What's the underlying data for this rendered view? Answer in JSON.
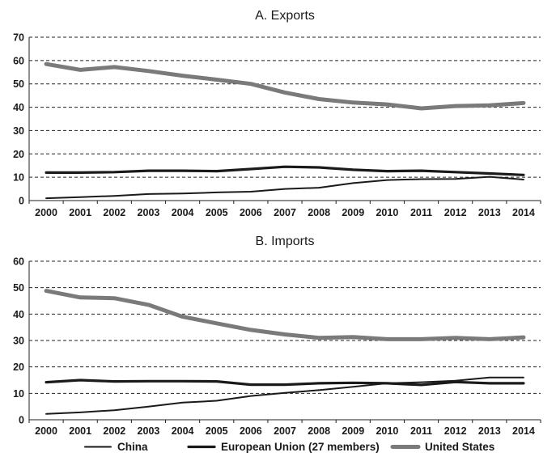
{
  "chart_data": [
    {
      "type": "line",
      "title": "A. Exports",
      "xlabel": "",
      "ylabel": "",
      "x": [
        "2000",
        "2001",
        "2002",
        "2003",
        "2004",
        "2005",
        "2006",
        "2007",
        "2008",
        "2009",
        "2010",
        "2011",
        "2012",
        "2013",
        "2014"
      ],
      "ylim": [
        0,
        70
      ],
      "yticks": [
        0,
        10,
        20,
        30,
        40,
        50,
        60,
        70
      ],
      "grid": true,
      "series": [
        {
          "name": "China",
          "color": "#1a1a1a",
          "values": [
            1.0,
            1.5,
            2.0,
            2.8,
            3.0,
            3.5,
            3.8,
            5.0,
            5.5,
            7.5,
            8.8,
            9.2,
            9.3,
            10.2,
            9.0
          ]
        },
        {
          "name": "European Union (27 members)",
          "color": "#1a1a1a",
          "values": [
            12.0,
            12.0,
            12.2,
            12.8,
            12.8,
            12.6,
            13.5,
            14.5,
            14.2,
            13.2,
            12.6,
            12.8,
            12.2,
            11.6,
            11.0
          ]
        },
        {
          "name": "United States",
          "color": "#7a7a7a",
          "values": [
            58.5,
            56.0,
            57.2,
            55.5,
            53.5,
            51.8,
            50.0,
            46.3,
            43.5,
            42.0,
            41.2,
            39.5,
            40.5,
            40.8,
            41.8
          ]
        }
      ]
    },
    {
      "type": "line",
      "title": "B. Imports",
      "xlabel": "",
      "ylabel": "",
      "x": [
        "2000",
        "2001",
        "2002",
        "2003",
        "2004",
        "2005",
        "2006",
        "2007",
        "2008",
        "2009",
        "2010",
        "2011",
        "2012",
        "2013",
        "2014"
      ],
      "ylim": [
        0,
        60
      ],
      "yticks": [
        0,
        10,
        20,
        30,
        40,
        50,
        60
      ],
      "grid": true,
      "series": [
        {
          "name": "China",
          "color": "#1a1a1a",
          "values": [
            2.2,
            2.8,
            3.6,
            5.0,
            6.5,
            7.2,
            9.0,
            10.2,
            11.2,
            12.5,
            13.8,
            14.2,
            14.8,
            16.0,
            16.0
          ]
        },
        {
          "name": "European Union (27 members)",
          "color": "#1a1a1a",
          "values": [
            14.2,
            15.0,
            14.5,
            14.6,
            14.6,
            14.5,
            13.3,
            13.3,
            13.8,
            14.0,
            13.8,
            13.2,
            14.3,
            13.8,
            13.8
          ]
        },
        {
          "name": "United States",
          "color": "#7a7a7a",
          "values": [
            48.8,
            46.3,
            46.0,
            43.5,
            39.0,
            36.5,
            34.0,
            32.3,
            31.0,
            31.3,
            30.5,
            30.5,
            31.0,
            30.5,
            31.2
          ]
        }
      ]
    }
  ],
  "legend": {
    "placement": "bottom",
    "items": [
      {
        "label": "China",
        "color": "#1a1a1a"
      },
      {
        "label": "European Union (27 members)",
        "color": "#1a1a1a"
      },
      {
        "label": "United States",
        "color": "#7a7a7a"
      }
    ]
  }
}
